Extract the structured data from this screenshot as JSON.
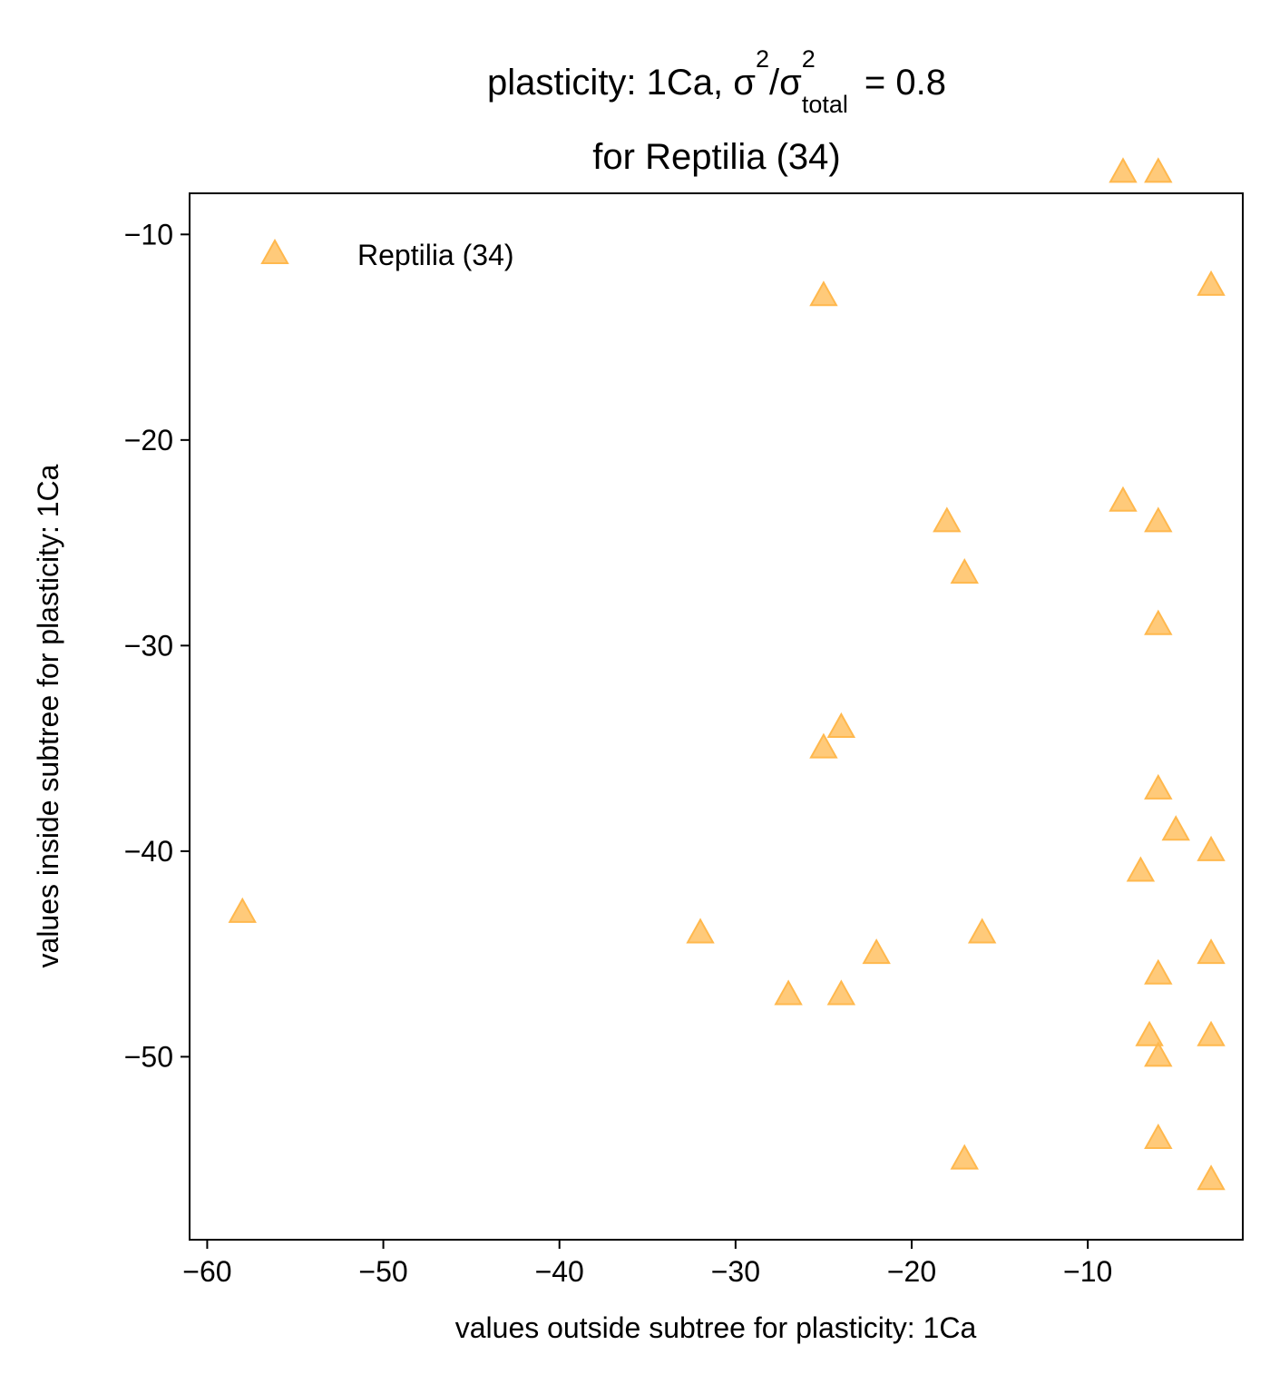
{
  "chart_data": {
    "type": "scatter",
    "title": {
      "prefix": "plasticity: 1Ca, σ",
      "sup1": "2",
      "slash": "/σ",
      "sub": "total",
      "sup2": "2",
      "suffix": "=  0.8",
      "line2": "for Reptilia (34)"
    },
    "xlabel": "values outside subtree for plasticity: 1Ca",
    "ylabel": "values inside subtree for plasticity: 1Ca",
    "xlim": [
      -61,
      -1.2
    ],
    "ylim": [
      -58.9,
      -8.0
    ],
    "xticks": [
      -60,
      -50,
      -40,
      -30,
      -20,
      -10
    ],
    "yticks": [
      -10,
      -20,
      -30,
      -40,
      -50
    ],
    "tick_labels_x": [
      "−60",
      "−50",
      "−40",
      "−30",
      "−20",
      "−10"
    ],
    "tick_labels_y": [
      "−10",
      "−20",
      "−30",
      "−40",
      "−50"
    ],
    "legend": {
      "position": "upper-left",
      "entries": [
        "Reptilia (34)"
      ]
    },
    "grid": false,
    "marker": "triangle",
    "color": "#ffb84d",
    "series": [
      {
        "name": "Reptilia (34)",
        "points": [
          {
            "x": -58,
            "y": -43
          },
          {
            "x": -32,
            "y": -44
          },
          {
            "x": -27,
            "y": -47
          },
          {
            "x": -25,
            "y": -13
          },
          {
            "x": -25,
            "y": -35
          },
          {
            "x": -24,
            "y": -34
          },
          {
            "x": -24,
            "y": -47
          },
          {
            "x": -22,
            "y": -45
          },
          {
            "x": -18,
            "y": -24
          },
          {
            "x": -17,
            "y": -26.5
          },
          {
            "x": -17,
            "y": -55
          },
          {
            "x": -16,
            "y": -44
          },
          {
            "x": -8,
            "y": -7
          },
          {
            "x": -8,
            "y": -23
          },
          {
            "x": -7,
            "y": -41
          },
          {
            "x": -6.5,
            "y": -49
          },
          {
            "x": -6,
            "y": -7
          },
          {
            "x": -6,
            "y": -24
          },
          {
            "x": -6,
            "y": -29
          },
          {
            "x": -6,
            "y": -37
          },
          {
            "x": -6,
            "y": -46
          },
          {
            "x": -6,
            "y": -50
          },
          {
            "x": -6,
            "y": -54
          },
          {
            "x": -5,
            "y": -39
          },
          {
            "x": -3,
            "y": -12.5
          },
          {
            "x": -3,
            "y": -40
          },
          {
            "x": -3,
            "y": -45
          },
          {
            "x": -3,
            "y": -49
          },
          {
            "x": -3,
            "y": -56
          }
        ]
      }
    ]
  }
}
